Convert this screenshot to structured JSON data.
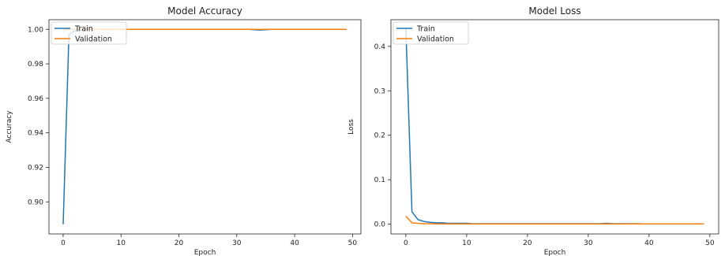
{
  "chart_data": [
    {
      "type": "line",
      "title": "Model Accuracy",
      "xlabel": "Epoch",
      "ylabel": "Accuracy",
      "xlim": [
        -2.45,
        51.45
      ],
      "ylim": [
        0.8814,
        1.0056
      ],
      "xticks": [
        0,
        10,
        20,
        30,
        40,
        50
      ],
      "yticks": [
        0.9,
        0.92,
        0.94,
        0.96,
        0.98,
        1.0
      ],
      "ytick_labels": [
        "0.90",
        "0.92",
        "0.94",
        "0.96",
        "0.98",
        "1.00"
      ],
      "legend": "upper-left",
      "x": [
        0,
        1,
        2,
        3,
        4,
        5,
        6,
        7,
        8,
        9,
        10,
        11,
        12,
        13,
        14,
        15,
        16,
        17,
        18,
        19,
        20,
        21,
        22,
        23,
        24,
        25,
        26,
        27,
        28,
        29,
        30,
        31,
        32,
        33,
        34,
        35,
        36,
        37,
        38,
        39,
        40,
        41,
        42,
        43,
        44,
        45,
        46,
        47,
        48,
        49
      ],
      "series": [
        {
          "name": "Train",
          "color": "#1f77b4",
          "values": [
            0.887,
            0.997,
            0.999,
            0.9995,
            0.9998,
            1.0,
            1.0,
            1.0,
            1.0,
            1.0,
            1.0,
            1.0,
            1.0,
            1.0,
            1.0,
            1.0,
            1.0,
            1.0,
            1.0,
            1.0,
            1.0,
            1.0,
            1.0,
            1.0,
            1.0,
            1.0,
            1.0,
            1.0,
            1.0,
            1.0,
            1.0,
            1.0,
            1.0,
            0.9998,
            0.9996,
            0.9998,
            1.0,
            1.0,
            1.0,
            1.0,
            1.0,
            1.0,
            1.0,
            1.0,
            1.0,
            1.0,
            1.0,
            1.0,
            1.0,
            1.0
          ]
        },
        {
          "name": "Validation",
          "color": "#ff7f0e",
          "values": [
            0.9995,
            1.0,
            1.0,
            1.0,
            1.0,
            1.0,
            1.0,
            1.0,
            1.0,
            1.0,
            1.0,
            1.0,
            1.0,
            1.0,
            1.0,
            1.0,
            1.0,
            1.0,
            1.0,
            1.0,
            1.0,
            1.0,
            1.0,
            1.0,
            1.0,
            1.0,
            1.0,
            1.0,
            1.0,
            1.0,
            1.0,
            1.0,
            1.0,
            1.0,
            1.0,
            1.0,
            1.0,
            1.0,
            1.0,
            1.0,
            1.0,
            1.0,
            1.0,
            1.0,
            1.0,
            1.0,
            1.0,
            1.0,
            1.0,
            1.0
          ]
        }
      ]
    },
    {
      "type": "line",
      "title": "Model Loss",
      "xlabel": "Epoch",
      "ylabel": "Loss",
      "xlim": [
        -2.45,
        51.45
      ],
      "ylim": [
        -0.022,
        0.46
      ],
      "xticks": [
        0,
        10,
        20,
        30,
        40,
        50
      ],
      "yticks": [
        0.0,
        0.1,
        0.2,
        0.3,
        0.4
      ],
      "ytick_labels": [
        "0.0",
        "0.1",
        "0.2",
        "0.3",
        "0.4"
      ],
      "legend": "upper-left",
      "x": [
        0,
        1,
        2,
        3,
        4,
        5,
        6,
        7,
        8,
        9,
        10,
        11,
        12,
        13,
        14,
        15,
        16,
        17,
        18,
        19,
        20,
        21,
        22,
        23,
        24,
        25,
        26,
        27,
        28,
        29,
        30,
        31,
        32,
        33,
        34,
        35,
        36,
        37,
        38,
        39,
        40,
        41,
        42,
        43,
        44,
        45,
        46,
        47,
        48,
        49
      ],
      "series": [
        {
          "name": "Train",
          "color": "#1f77b4",
          "values": [
            0.44,
            0.028,
            0.01,
            0.006,
            0.004,
            0.003,
            0.003,
            0.002,
            0.002,
            0.002,
            0.002,
            0.001,
            0.001,
            0.001,
            0.001,
            0.001,
            0.001,
            0.001,
            0.001,
            0.001,
            0.001,
            0.001,
            0.001,
            0.001,
            0.001,
            0.001,
            0.001,
            0.001,
            0.001,
            0.001,
            0.001,
            0.001,
            0.001,
            0.002,
            0.001,
            0.001,
            0.001,
            0.001,
            0.001,
            0.0005,
            0.0005,
            0.0005,
            0.0005,
            0.0005,
            0.0005,
            0.0005,
            0.0005,
            0.0005,
            0.0005,
            0.0005
          ]
        },
        {
          "name": "Validation",
          "color": "#ff7f0e",
          "values": [
            0.018,
            0.003,
            0.002,
            0.001,
            0.001,
            0.0005,
            0.0005,
            0.0005,
            0.0005,
            0.0005,
            0.0005,
            0.0005,
            0.0005,
            0.0005,
            0.0005,
            0.0005,
            0.0005,
            0.0005,
            0.0005,
            0.0005,
            0.0005,
            0.0005,
            0.0005,
            0.0005,
            0.0005,
            0.0005,
            0.0005,
            0.0005,
            0.0005,
            0.0005,
            0.0005,
            0.0005,
            0.0005,
            0.0005,
            0.0005,
            0.0005,
            0.0005,
            0.0005,
            0.0005,
            0.0005,
            0.0005,
            0.0005,
            0.0005,
            0.0005,
            0.0005,
            0.0005,
            0.0005,
            0.0005,
            0.0005,
            0.0005
          ]
        }
      ]
    }
  ]
}
